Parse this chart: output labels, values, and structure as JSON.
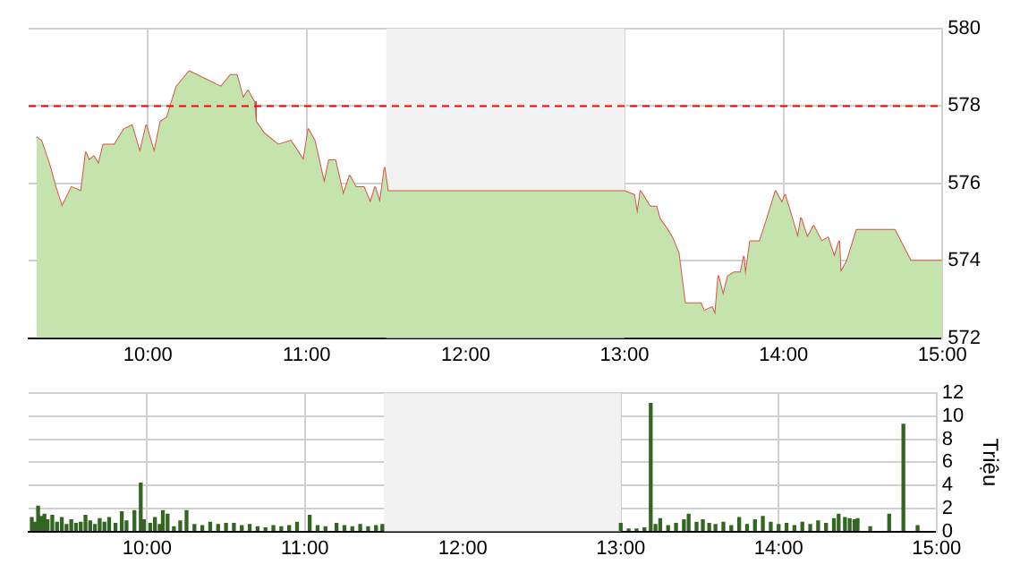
{
  "chart_data": [
    {
      "type": "area",
      "xlim": [
        9.25,
        15
      ],
      "xticks": [
        {
          "value": 10,
          "label": "10:00"
        },
        {
          "value": 11,
          "label": "11:00"
        },
        {
          "value": 12,
          "label": "12:00"
        },
        {
          "value": 13,
          "label": "13:00"
        },
        {
          "value": 14,
          "label": "14:00"
        },
        {
          "value": 15,
          "label": "15:00"
        }
      ],
      "ylim": [
        572,
        580
      ],
      "yticks": [
        572,
        574,
        576,
        578,
        580
      ],
      "grid": true,
      "series": [
        {
          "color": "#c5e3ad",
          "x": [
            9.3,
            9.33,
            9.38,
            9.42,
            9.46,
            9.52,
            9.58,
            9.61,
            9.63,
            9.66,
            9.69,
            9.72,
            9.79,
            9.85,
            9.9,
            9.95,
            9.99,
            10.04,
            10.08,
            10.12,
            10.18,
            10.26,
            10.36,
            10.46,
            10.52,
            10.56,
            10.6,
            10.63,
            10.67,
            10.68,
            10.73,
            10.82,
            10.9,
            10.98,
            11.01,
            11.05,
            11.11,
            11.14,
            11.18,
            11.23,
            11.27,
            11.31,
            11.36,
            11.4,
            11.43,
            11.46,
            11.49,
            11.51,
            13.0,
            13.06,
            13.08,
            13.1,
            13.16,
            13.2,
            13.22,
            13.27,
            13.3,
            13.34,
            13.38,
            13.41,
            13.45,
            13.48,
            13.5,
            13.55,
            13.57,
            13.59,
            13.62,
            13.65,
            13.69,
            13.73,
            13.75,
            13.76,
            13.79,
            13.85,
            13.89,
            13.95,
            13.99,
            14.01,
            14.09,
            14.11,
            14.15,
            14.19,
            14.24,
            14.28,
            14.32,
            14.35,
            14.36,
            14.4,
            14.46,
            14.5,
            14.7,
            14.8,
            15.0
          ],
          "values": [
            577.2,
            577.1,
            576.5,
            575.9,
            575.4,
            575.9,
            575.8,
            576.8,
            576.6,
            576.7,
            576.5,
            577.0,
            577.0,
            577.4,
            577.5,
            576.8,
            577.5,
            576.8,
            577.6,
            577.7,
            578.5,
            578.9,
            578.7,
            578.5,
            578.8,
            578.8,
            578.2,
            578.4,
            578.1,
            577.6,
            577.3,
            577.0,
            577.1,
            576.6,
            577.4,
            577.1,
            576.0,
            576.6,
            576.6,
            575.7,
            576.2,
            575.9,
            575.9,
            575.5,
            575.9,
            575.5,
            576.4,
            575.8,
            575.8,
            575.7,
            575.2,
            575.8,
            575.4,
            575.4,
            575.1,
            574.8,
            574.6,
            574.2,
            572.9,
            572.9,
            572.9,
            572.9,
            572.7,
            572.8,
            572.6,
            573.6,
            573.1,
            573.6,
            573.7,
            573.7,
            574.1,
            573.6,
            574.5,
            574.5,
            575.0,
            575.8,
            575.5,
            575.7,
            574.6,
            575.1,
            574.6,
            574.9,
            574.5,
            574.6,
            574.1,
            574.5,
            573.7,
            574.0,
            574.8,
            574.8,
            574.8,
            574.0,
            574.0
          ]
        },
        {
          "type": "line",
          "color": "#d9534f",
          "x": [
            9.3,
            9.33,
            9.38,
            9.42,
            9.46,
            9.52,
            9.58,
            9.61,
            9.63,
            9.66,
            9.69,
            9.72,
            9.79,
            9.85,
            9.9,
            9.95,
            9.99,
            10.04,
            10.08,
            10.12,
            10.18,
            10.26,
            10.36,
            10.46,
            10.52,
            10.56,
            10.6,
            10.63,
            10.67,
            10.68,
            10.73,
            10.82,
            10.9,
            10.98,
            11.01,
            11.05,
            11.11,
            11.14,
            11.18,
            11.23,
            11.27,
            11.31,
            11.36,
            11.4,
            11.43,
            11.46,
            11.49,
            11.51,
            13.0,
            13.06,
            13.08,
            13.1,
            13.16,
            13.2,
            13.22,
            13.27,
            13.3,
            13.34,
            13.38,
            13.41,
            13.45,
            13.48,
            13.5,
            13.55,
            13.57,
            13.59,
            13.62,
            13.65,
            13.69,
            13.73,
            13.75,
            13.76,
            13.79,
            13.85,
            13.89,
            13.95,
            13.99,
            14.01,
            14.09,
            14.11,
            14.15,
            14.19,
            14.24,
            14.28,
            14.32,
            14.35,
            14.36,
            14.4,
            14.46,
            14.5,
            14.7,
            14.8,
            15.0
          ],
          "values": [
            577.2,
            577.1,
            576.5,
            575.9,
            575.4,
            575.9,
            575.8,
            576.8,
            576.6,
            576.7,
            576.5,
            577.0,
            577.0,
            577.4,
            577.5,
            576.8,
            577.5,
            576.8,
            577.6,
            577.7,
            578.5,
            578.9,
            578.7,
            578.5,
            578.8,
            578.8,
            578.2,
            578.4,
            578.1,
            577.6,
            577.3,
            577.0,
            577.1,
            576.6,
            577.4,
            577.1,
            576.0,
            576.6,
            576.6,
            575.7,
            576.2,
            575.9,
            575.9,
            575.5,
            575.9,
            575.5,
            576.4,
            575.8,
            575.8,
            575.7,
            575.2,
            575.8,
            575.4,
            575.4,
            575.1,
            574.8,
            574.6,
            574.2,
            572.9,
            572.9,
            572.9,
            572.9,
            572.7,
            572.8,
            572.6,
            573.6,
            573.1,
            573.6,
            573.7,
            573.7,
            574.1,
            573.6,
            574.5,
            574.5,
            575.0,
            575.8,
            575.5,
            575.7,
            574.6,
            575.1,
            574.6,
            574.9,
            574.5,
            574.6,
            574.1,
            574.5,
            573.7,
            574.0,
            574.8,
            574.8,
            574.8,
            574.0,
            574.0
          ]
        }
      ],
      "ref_lines": [
        {
          "axis": "y",
          "value": 578,
          "color": "#ff0000",
          "line_style": "dashed"
        }
      ],
      "bands": [
        {
          "axis": "x",
          "from": 11.5,
          "to": 13,
          "color": "#f2f2f2"
        }
      ]
    },
    {
      "type": "bar",
      "ylabel": "Triệu",
      "xlim": [
        9.25,
        15
      ],
      "xticks": [
        {
          "value": 10,
          "label": "10:00"
        },
        {
          "value": 11,
          "label": "11:00"
        },
        {
          "value": 12,
          "label": "12:00"
        },
        {
          "value": 13,
          "label": "13:00"
        },
        {
          "value": 14,
          "label": "14:00"
        },
        {
          "value": 15,
          "label": "15:00"
        }
      ],
      "ylim": [
        0,
        12
      ],
      "yticks": [
        0,
        2,
        4,
        6,
        8,
        10,
        12
      ],
      "grid": true,
      "series": [
        {
          "color": "#336622",
          "x": [
            9.27,
            9.29,
            9.31,
            9.33,
            9.35,
            9.37,
            9.4,
            9.43,
            9.46,
            9.49,
            9.52,
            9.55,
            9.58,
            9.61,
            9.64,
            9.67,
            9.7,
            9.73,
            9.76,
            9.8,
            9.84,
            9.87,
            9.92,
            9.96,
            9.98,
            10.02,
            10.05,
            10.08,
            10.1,
            10.13,
            10.17,
            10.21,
            10.25,
            10.3,
            10.35,
            10.4,
            10.45,
            10.5,
            10.55,
            10.6,
            10.65,
            10.7,
            10.75,
            10.8,
            10.85,
            10.9,
            10.95,
            11.03,
            11.08,
            11.13,
            11.2,
            11.25,
            11.3,
            11.35,
            11.4,
            11.45,
            11.49,
            13.0,
            13.05,
            13.1,
            13.15,
            13.19,
            13.22,
            13.25,
            13.3,
            13.35,
            13.4,
            13.43,
            13.48,
            13.52,
            13.56,
            13.6,
            13.65,
            13.7,
            13.75,
            13.8,
            13.85,
            13.9,
            13.95,
            14.0,
            14.05,
            14.1,
            14.15,
            14.2,
            14.25,
            14.3,
            14.35,
            14.38,
            14.42,
            14.45,
            14.48,
            14.5,
            14.58,
            14.7,
            14.79,
            14.88
          ],
          "values": [
            1.2,
            0.8,
            2.2,
            1.3,
            1.5,
            1.0,
            1.4,
            0.8,
            1.2,
            0.6,
            1.0,
            0.7,
            0.8,
            1.4,
            0.9,
            0.6,
            1.1,
            0.8,
            1.2,
            0.7,
            1.7,
            0.9,
            1.8,
            4.2,
            1.0,
            0.7,
            1.2,
            0.6,
            1.8,
            1.5,
            0.4,
            0.9,
            1.8,
            0.6,
            0.5,
            0.8,
            0.6,
            0.7,
            0.7,
            0.5,
            0.6,
            0.4,
            0.3,
            0.5,
            0.4,
            0.5,
            0.8,
            1.4,
            0.5,
            0.4,
            0.7,
            0.5,
            0.4,
            0.6,
            0.4,
            0.5,
            0.6,
            0.7,
            0.2,
            0.2,
            0.3,
            11.1,
            0.6,
            1.1,
            0.5,
            0.7,
            1.0,
            1.5,
            0.8,
            1.0,
            0.7,
            0.6,
            0.8,
            0.5,
            1.2,
            0.6,
            1.0,
            1.3,
            0.8,
            0.6,
            0.7,
            0.5,
            0.8,
            0.6,
            0.9,
            0.7,
            1.1,
            1.5,
            1.2,
            1.1,
            1.0,
            1.1,
            0.4,
            1.5,
            9.3,
            0.5
          ]
        }
      ],
      "bands": [
        {
          "axis": "x",
          "from": 11.5,
          "to": 13,
          "color": "#f2f2f2"
        }
      ]
    }
  ]
}
